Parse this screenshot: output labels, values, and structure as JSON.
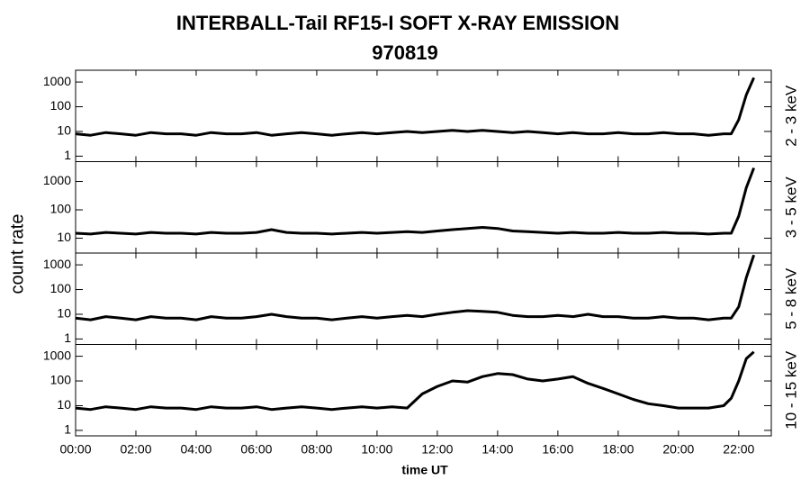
{
  "figure": {
    "title": "INTERBALL-Tail RF15-I SOFT X-RAY EMISSION",
    "subtitle": "970819",
    "ylabel": "count rate",
    "xlabel": "time UT"
  },
  "chart_data": [
    {
      "type": "line",
      "label": "2 - 3 keV",
      "log_y": true,
      "color": "#000000",
      "xlim": [
        0,
        23.08
      ],
      "ylim": [
        0.6,
        3000
      ],
      "yticks": [
        1,
        10,
        100,
        1000
      ],
      "x": [
        0,
        0.5,
        1,
        1.5,
        2,
        2.5,
        3,
        3.5,
        4,
        4.5,
        5,
        5.5,
        6,
        6.5,
        7,
        7.5,
        8,
        8.5,
        9,
        9.5,
        10,
        10.5,
        11,
        11.5,
        12,
        12.5,
        13,
        13.5,
        14,
        14.5,
        15,
        15.5,
        16,
        16.5,
        17,
        17.5,
        18,
        18.5,
        19,
        19.5,
        20,
        20.5,
        21,
        21.5,
        21.75,
        22,
        22.25,
        22.5
      ],
      "values": [
        8,
        7,
        9,
        8,
        7,
        9,
        8,
        8,
        7,
        9,
        8,
        8,
        9,
        7,
        8,
        9,
        8,
        7,
        8,
        9,
        8,
        9,
        10,
        9,
        10,
        11,
        10,
        11,
        10,
        9,
        10,
        9,
        8,
        9,
        8,
        8,
        9,
        8,
        8,
        9,
        8,
        8,
        7,
        8,
        8,
        30,
        300,
        1500
      ]
    },
    {
      "type": "line",
      "label": "3 - 5 keV",
      "log_y": true,
      "color": "#000000",
      "xlim": [
        0,
        23.08
      ],
      "ylim": [
        3,
        5000
      ],
      "yticks": [
        10,
        100,
        1000
      ],
      "x": [
        0,
        0.5,
        1,
        1.5,
        2,
        2.5,
        3,
        3.5,
        4,
        4.5,
        5,
        5.5,
        6,
        6.5,
        7,
        7.5,
        8,
        8.5,
        9,
        9.5,
        10,
        10.5,
        11,
        11.5,
        12,
        12.5,
        13,
        13.5,
        14,
        14.5,
        15,
        15.5,
        16,
        16.5,
        17,
        17.5,
        18,
        18.5,
        19,
        19.5,
        20,
        20.5,
        21,
        21.5,
        21.75,
        22,
        22.25,
        22.5
      ],
      "values": [
        15,
        14,
        16,
        15,
        14,
        16,
        15,
        15,
        14,
        16,
        15,
        15,
        16,
        20,
        16,
        15,
        15,
        14,
        15,
        16,
        15,
        16,
        17,
        16,
        18,
        20,
        22,
        24,
        22,
        18,
        17,
        16,
        15,
        16,
        15,
        15,
        16,
        15,
        15,
        16,
        15,
        15,
        14,
        15,
        15,
        60,
        600,
        3000
      ]
    },
    {
      "type": "line",
      "label": "5 - 8 keV",
      "log_y": true,
      "color": "#000000",
      "xlim": [
        0,
        23.08
      ],
      "ylim": [
        0.6,
        3000
      ],
      "yticks": [
        1,
        10,
        100,
        1000
      ],
      "x": [
        0,
        0.5,
        1,
        1.5,
        2,
        2.5,
        3,
        3.5,
        4,
        4.5,
        5,
        5.5,
        6,
        6.5,
        7,
        7.5,
        8,
        8.5,
        9,
        9.5,
        10,
        10.5,
        11,
        11.5,
        12,
        12.5,
        13,
        13.5,
        14,
        14.5,
        15,
        15.5,
        16,
        16.5,
        17,
        17.5,
        18,
        18.5,
        19,
        19.5,
        20,
        20.5,
        21,
        21.5,
        21.75,
        22,
        22.25,
        22.5
      ],
      "values": [
        7,
        6,
        8,
        7,
        6,
        8,
        7,
        7,
        6,
        8,
        7,
        7,
        8,
        10,
        8,
        7,
        7,
        6,
        7,
        8,
        7,
        8,
        9,
        8,
        10,
        12,
        14,
        13,
        12,
        9,
        8,
        8,
        9,
        8,
        10,
        8,
        8,
        7,
        7,
        8,
        7,
        7,
        6,
        7,
        7,
        20,
        300,
        2500
      ]
    },
    {
      "type": "line",
      "label": "10 - 15 keV",
      "log_y": true,
      "color": "#000000",
      "xlim": [
        0,
        23.08
      ],
      "ylim": [
        0.6,
        3000
      ],
      "yticks": [
        1,
        10,
        100,
        1000
      ],
      "xticks": [
        {
          "value": 0,
          "label": "00:00"
        },
        {
          "value": 2,
          "label": "02:00"
        },
        {
          "value": 4,
          "label": "04:00"
        },
        {
          "value": 6,
          "label": "06:00"
        },
        {
          "value": 8,
          "label": "08:00"
        },
        {
          "value": 10,
          "label": "10:00"
        },
        {
          "value": 12,
          "label": "12:00"
        },
        {
          "value": 14,
          "label": "14:00"
        },
        {
          "value": 16,
          "label": "16:00"
        },
        {
          "value": 18,
          "label": "18:00"
        },
        {
          "value": 20,
          "label": "20:00"
        },
        {
          "value": 22,
          "label": "22:00"
        }
      ],
      "x": [
        0,
        0.5,
        1,
        1.5,
        2,
        2.5,
        3,
        3.5,
        4,
        4.5,
        5,
        5.5,
        6,
        6.5,
        7,
        7.5,
        8,
        8.5,
        9,
        9.5,
        10,
        10.5,
        11,
        11.5,
        12,
        12.5,
        13,
        13.5,
        14,
        14.5,
        15,
        15.5,
        16,
        16.5,
        17,
        17.5,
        18,
        18.5,
        19,
        19.5,
        20,
        20.5,
        21,
        21.5,
        21.75,
        22,
        22.25,
        22.5
      ],
      "values": [
        8,
        7,
        9,
        8,
        7,
        9,
        8,
        8,
        7,
        9,
        8,
        8,
        9,
        7,
        8,
        9,
        8,
        7,
        8,
        9,
        8,
        9,
        8,
        30,
        60,
        100,
        90,
        150,
        200,
        180,
        120,
        100,
        120,
        150,
        80,
        50,
        30,
        18,
        12,
        10,
        8,
        8,
        8,
        10,
        20,
        100,
        800,
        1500
      ]
    }
  ]
}
